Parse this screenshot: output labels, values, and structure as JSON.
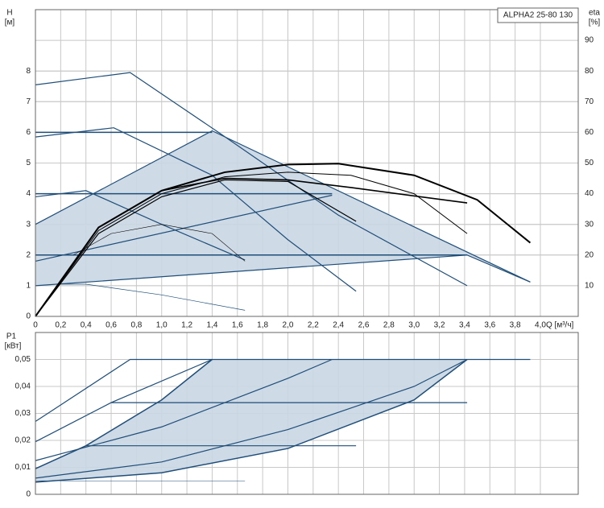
{
  "chart_data": [
    {
      "type": "line",
      "title": "ALPHA2 25-80 130",
      "y_label": "H",
      "y_unit": "[м]",
      "y2_label": "eta",
      "y2_unit": "[%]",
      "x_label": "Q [м³/ч]",
      "xlim": [
        0,
        4.3
      ],
      "ylim": [
        0,
        10
      ],
      "y2lim": [
        0,
        100
      ],
      "grid": true,
      "xticks": [
        0,
        {
          "value": 0.2,
          "label": "0,2"
        },
        {
          "value": 0.4,
          "label": "0,4"
        },
        {
          "value": 0.6,
          "label": "0,6"
        },
        {
          "value": 0.8,
          "label": "0,8"
        },
        {
          "value": 1.0,
          "label": "1,0"
        },
        {
          "value": 1.2,
          "label": "1,2"
        },
        {
          "value": 1.4,
          "label": "1,4"
        },
        {
          "value": 1.6,
          "label": "1,6"
        },
        {
          "value": 1.8,
          "label": "1,8"
        },
        {
          "value": 2.0,
          "label": "2,0"
        },
        {
          "value": 2.2,
          "label": "2,2"
        },
        {
          "value": 2.4,
          "label": "2,4"
        },
        {
          "value": 2.6,
          "label": "2,6"
        },
        {
          "value": 2.8,
          "label": "2,8"
        },
        {
          "value": 3.0,
          "label": "3,0"
        },
        {
          "value": 3.2,
          "label": "3,2"
        },
        {
          "value": 3.4,
          "label": "3,4"
        },
        {
          "value": 3.6,
          "label": "3,6"
        },
        {
          "value": 3.8,
          "label": "3,8"
        },
        {
          "value": 4.0,
          "label": "4,0"
        }
      ],
      "yticks": [
        0,
        1,
        2,
        3,
        4,
        5,
        6,
        7,
        8
      ],
      "y2ticks": [
        10,
        20,
        30,
        40,
        50,
        60,
        70,
        80,
        90
      ],
      "areas": [
        {
          "color": "#c9d6e3",
          "x": [
            0,
            1.4,
            3.92,
            3.42,
            0
          ],
          "y": [
            3.0,
            6.05,
            1.12,
            2.0,
            1.0
          ]
        }
      ],
      "series": [
        {
          "color": "#1f4e79",
          "line_width": 1.2,
          "x": [
            0,
            0.75,
            1.45,
            2.4,
            3.42
          ],
          "values": [
            7.55,
            7.95,
            6.0,
            3.3,
            1.0
          ]
        },
        {
          "color": "#1f4e79",
          "line_width": 1.2,
          "x": [
            0,
            0.62,
            1.4,
            2.0,
            2.54
          ],
          "values": [
            5.85,
            6.15,
            4.6,
            2.5,
            0.82
          ]
        },
        {
          "color": "#1f4e79",
          "line_width": 1.2,
          "x": [
            0,
            0.4,
            1.0,
            1.66
          ],
          "values": [
            3.9,
            4.1,
            3.0,
            1.84
          ]
        },
        {
          "color": "#1f4e79",
          "line_width": 0.7,
          "x": [
            0.2,
            0.4,
            1.0,
            1.66
          ],
          "values": [
            1.05,
            1.05,
            0.7,
            0.2
          ]
        },
        {
          "color": "#1f4e79",
          "line_width": 1.5,
          "x": [
            0,
            1.4
          ],
          "values": [
            6.0,
            6.0
          ]
        },
        {
          "color": "#1f4e79",
          "line_width": 1.5,
          "x": [
            0,
            2.35
          ],
          "values": [
            4.0,
            4.0
          ]
        },
        {
          "color": "#1f4e79",
          "line_width": 1.5,
          "x": [
            0,
            3.42
          ],
          "values": [
            2.0,
            2.0
          ]
        },
        {
          "color": "#1f4e79",
          "line_width": 1.2,
          "x": [
            0,
            1.4,
            3.92
          ],
          "values": [
            3.0,
            6.05,
            1.12
          ]
        },
        {
          "color": "#1f4e79",
          "line_width": 1.2,
          "x": [
            0,
            2.35
          ],
          "values": [
            1.8,
            3.95
          ]
        },
        {
          "color": "#1f4e79",
          "line_width": 1.2,
          "x": [
            0,
            3.42,
            3.92
          ],
          "values": [
            1.0,
            2.0,
            1.12
          ]
        },
        {
          "color": "#000000",
          "line_width": 2,
          "axis": "y2",
          "x": [
            0,
            0.5,
            1.0,
            1.5,
            2.0,
            2.4,
            3.0,
            3.5,
            3.92
          ],
          "values": [
            0,
            29,
            41,
            47,
            49.5,
            49.8,
            46,
            38,
            24
          ]
        },
        {
          "color": "#000000",
          "line_width": 1,
          "axis": "y2",
          "x": [
            0,
            0.5,
            1.0,
            1.5,
            2.0,
            2.5,
            3.0,
            3.42
          ],
          "values": [
            0,
            28,
            40,
            45.5,
            47,
            46,
            40,
            27
          ]
        },
        {
          "color": "#000000",
          "line_width": 1.2,
          "axis": "y2",
          "x": [
            0,
            0.5,
            1.0,
            1.5,
            2.0,
            2.54
          ],
          "values": [
            0,
            27,
            39,
            44.5,
            44,
            31
          ]
        },
        {
          "color": "#000000",
          "line_width": 1.6,
          "axis": "y2",
          "x": [
            0,
            0.5,
            1.0,
            1.5,
            2.0,
            2.5,
            3.42
          ],
          "values": [
            0,
            29,
            41,
            45,
            44.5,
            42,
            37
          ]
        },
        {
          "color": "#000000",
          "line_width": 0.6,
          "axis": "y2",
          "x": [
            0.3,
            0.6,
            1.0,
            1.4,
            1.66
          ],
          "values": [
            20,
            27,
            30,
            27,
            18
          ]
        }
      ]
    },
    {
      "type": "line",
      "y_label": "P1",
      "y_unit": "[кВт]",
      "xlim": [
        0,
        4.3
      ],
      "ylim": [
        0,
        0.06
      ],
      "grid": true,
      "yticks": [
        0,
        {
          "value": 0.01,
          "label": "0,01"
        },
        {
          "value": 0.02,
          "label": "0,02"
        },
        {
          "value": 0.03,
          "label": "0,03"
        },
        {
          "value": 0.04,
          "label": "0,04"
        },
        {
          "value": 0.05,
          "label": "0,05"
        }
      ],
      "areas": [
        {
          "color": "#c9d6e3",
          "x": [
            0,
            0.4,
            1.0,
            1.4,
            3.42,
            3.0,
            2.0,
            1.0,
            0
          ],
          "y": [
            0.0095,
            0.018,
            0.035,
            0.05,
            0.05,
            0.035,
            0.017,
            0.008,
            0.0045
          ]
        }
      ],
      "series": [
        {
          "color": "#1f4e79",
          "line_width": 1.2,
          "x": [
            0,
            0.75,
            3.92
          ],
          "values": [
            0.027,
            0.05,
            0.05
          ]
        },
        {
          "color": "#1f4e79",
          "line_width": 1.2,
          "x": [
            0,
            0.6,
            1.4
          ],
          "values": [
            0.0195,
            0.034,
            0.05
          ]
        },
        {
          "color": "#1f4e79",
          "line_width": 1.2,
          "x": [
            0.6,
            3.42
          ],
          "values": [
            0.034,
            0.034
          ]
        },
        {
          "color": "#1f4e79",
          "line_width": 1.2,
          "x": [
            0.4,
            2.54
          ],
          "values": [
            0.018,
            0.018
          ]
        },
        {
          "color": "#1f4e79",
          "line_width": 0.6,
          "x": [
            0,
            1.66
          ],
          "values": [
            0.005,
            0.005
          ]
        },
        {
          "color": "#1f4e79",
          "line_width": 1.5,
          "x": [
            0,
            0.4,
            1.0,
            1.4
          ],
          "values": [
            0.0095,
            0.018,
            0.035,
            0.05
          ]
        },
        {
          "color": "#1f4e79",
          "line_width": 1.2,
          "x": [
            0,
            1.0,
            2.0,
            2.35
          ],
          "values": [
            0.0125,
            0.025,
            0.043,
            0.05
          ]
        },
        {
          "color": "#1f4e79",
          "line_width": 1.2,
          "x": [
            0,
            1.0,
            2.0,
            3.0,
            3.42
          ],
          "values": [
            0.006,
            0.012,
            0.024,
            0.04,
            0.05
          ]
        },
        {
          "color": "#1f4e79",
          "line_width": 1.5,
          "x": [
            0,
            1.0,
            2.0,
            3.0,
            3.42
          ],
          "values": [
            0.0045,
            0.008,
            0.017,
            0.035,
            0.05
          ]
        }
      ]
    }
  ]
}
